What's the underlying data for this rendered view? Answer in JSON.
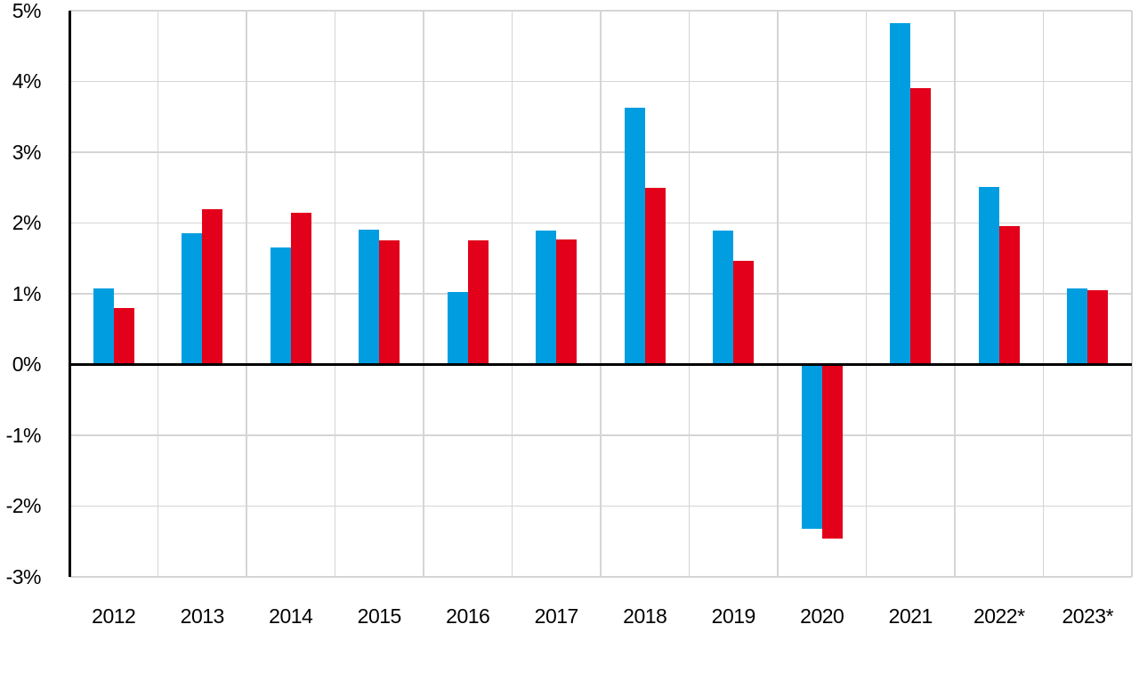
{
  "chart_data": {
    "type": "bar",
    "title": "",
    "categories": [
      "2012",
      "2013",
      "2014",
      "2015",
      "2016",
      "2017",
      "2018",
      "2019",
      "2020",
      "2021",
      "2022*",
      "2023*"
    ],
    "series": [
      {
        "name": "blue",
        "color": "#009EE0",
        "values": [
          1.08,
          1.85,
          1.65,
          1.9,
          1.03,
          1.89,
          3.63,
          1.89,
          -2.32,
          4.82,
          2.51,
          1.08
        ]
      },
      {
        "name": "red",
        "color": "#E2001A",
        "values": [
          0.8,
          2.2,
          2.15,
          1.75,
          1.75,
          1.77,
          2.5,
          1.47,
          -2.46,
          3.9,
          1.96,
          1.05
        ]
      }
    ],
    "y_tick_labels": [
      "5%",
      "4%",
      "3%",
      "2%",
      "1%",
      "0%",
      "-1%",
      "-2%",
      "-3%"
    ],
    "y_tick_values": [
      5,
      4,
      3,
      2,
      1,
      0,
      -1,
      -2,
      -3
    ],
    "ylim": [
      -3,
      5
    ],
    "xlabel": "",
    "ylabel": "",
    "legend": "none",
    "grid": true,
    "colors": {
      "axis": "#000000",
      "zero_line": "#000000",
      "gridline": "#D5D5D5",
      "background": "#FFFFFF",
      "tick_text": "#000000"
    }
  }
}
